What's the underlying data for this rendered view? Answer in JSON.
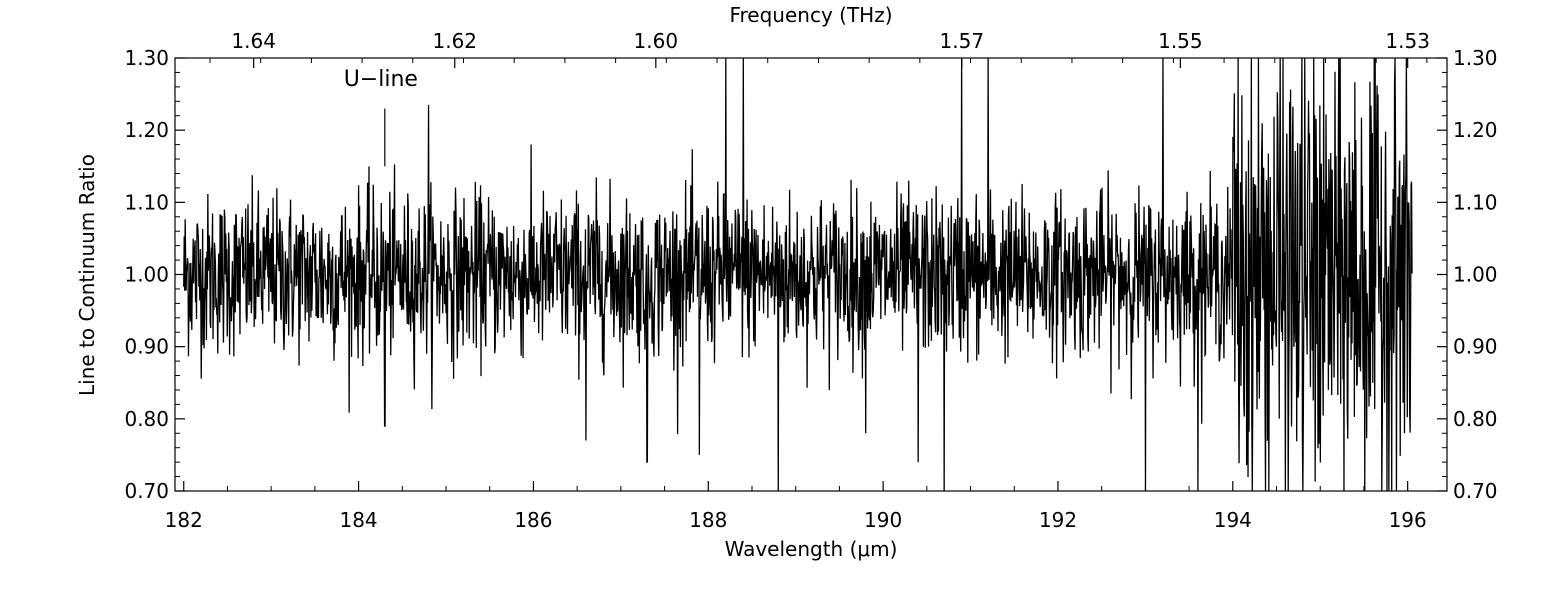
{
  "chart_data": {
    "type": "line",
    "xlabel": "Wavelength (μm)",
    "ylabel": "Line to Continuum Ratio",
    "top_xlabel": "Frequency (THz)",
    "xlim": [
      181.9,
      196.45
    ],
    "ylim": [
      0.7,
      1.3
    ],
    "x_ticks": [
      182,
      184,
      186,
      188,
      190,
      192,
      194,
      196
    ],
    "x_tick_labels": [
      "182",
      "184",
      "186",
      "188",
      "190",
      "192",
      "194",
      "196"
    ],
    "y_ticks": [
      0.7,
      0.8,
      0.9,
      1.0,
      1.1,
      1.2,
      1.3
    ],
    "y_tick_labels": [
      "0.70",
      "0.80",
      "0.90",
      "1.00",
      "1.10",
      "1.20",
      "1.30"
    ],
    "top_ticks": [
      {
        "label": "1.64",
        "wavelength": 182.8
      },
      {
        "label": "1.62",
        "wavelength": 185.1
      },
      {
        "label": "1.60",
        "wavelength": 187.4
      },
      {
        "label": "1.57",
        "wavelength": 190.9
      },
      {
        "label": "1.55",
        "wavelength": 193.4
      },
      {
        "label": "1.53",
        "wavelength": 196.0
      }
    ],
    "grid": false,
    "legend": "none",
    "annotations": [
      {
        "text": "U−line",
        "x": 184.3,
        "marker_y": [
          1.15,
          1.23
        ]
      }
    ],
    "series": [
      {
        "x_start": 182.0,
        "x_end": 196.05,
        "baseline": 1.0,
        "noise_sigma_approx": [
          {
            "x_range": [
              182.0,
              194.0
            ],
            "sigma": 0.055
          },
          {
            "x_range": [
              194.0,
              196.05
            ],
            "sigma": 0.16
          }
        ],
        "notable_features": [
          {
            "x": 184.3,
            "y": 0.79
          },
          {
            "x": 184.8,
            "y": 1.235
          },
          {
            "x": 186.6,
            "y": 0.77
          },
          {
            "x": 187.3,
            "y": 0.74
          },
          {
            "x": 187.9,
            "y": 0.75
          },
          {
            "x": 188.2,
            "y": 1.3
          },
          {
            "x": 188.4,
            "y": 1.3
          },
          {
            "x": 188.8,
            "y": 0.7
          },
          {
            "x": 189.8,
            "y": 0.78
          },
          {
            "x": 190.4,
            "y": 0.74
          },
          {
            "x": 190.7,
            "y": 0.7
          },
          {
            "x": 190.9,
            "y": 1.3
          },
          {
            "x": 191.2,
            "y": 1.3
          },
          {
            "x": 193.0,
            "y": 0.7
          },
          {
            "x": 193.2,
            "y": 1.3
          },
          {
            "x": 193.6,
            "y": 0.7
          }
        ]
      }
    ]
  }
}
